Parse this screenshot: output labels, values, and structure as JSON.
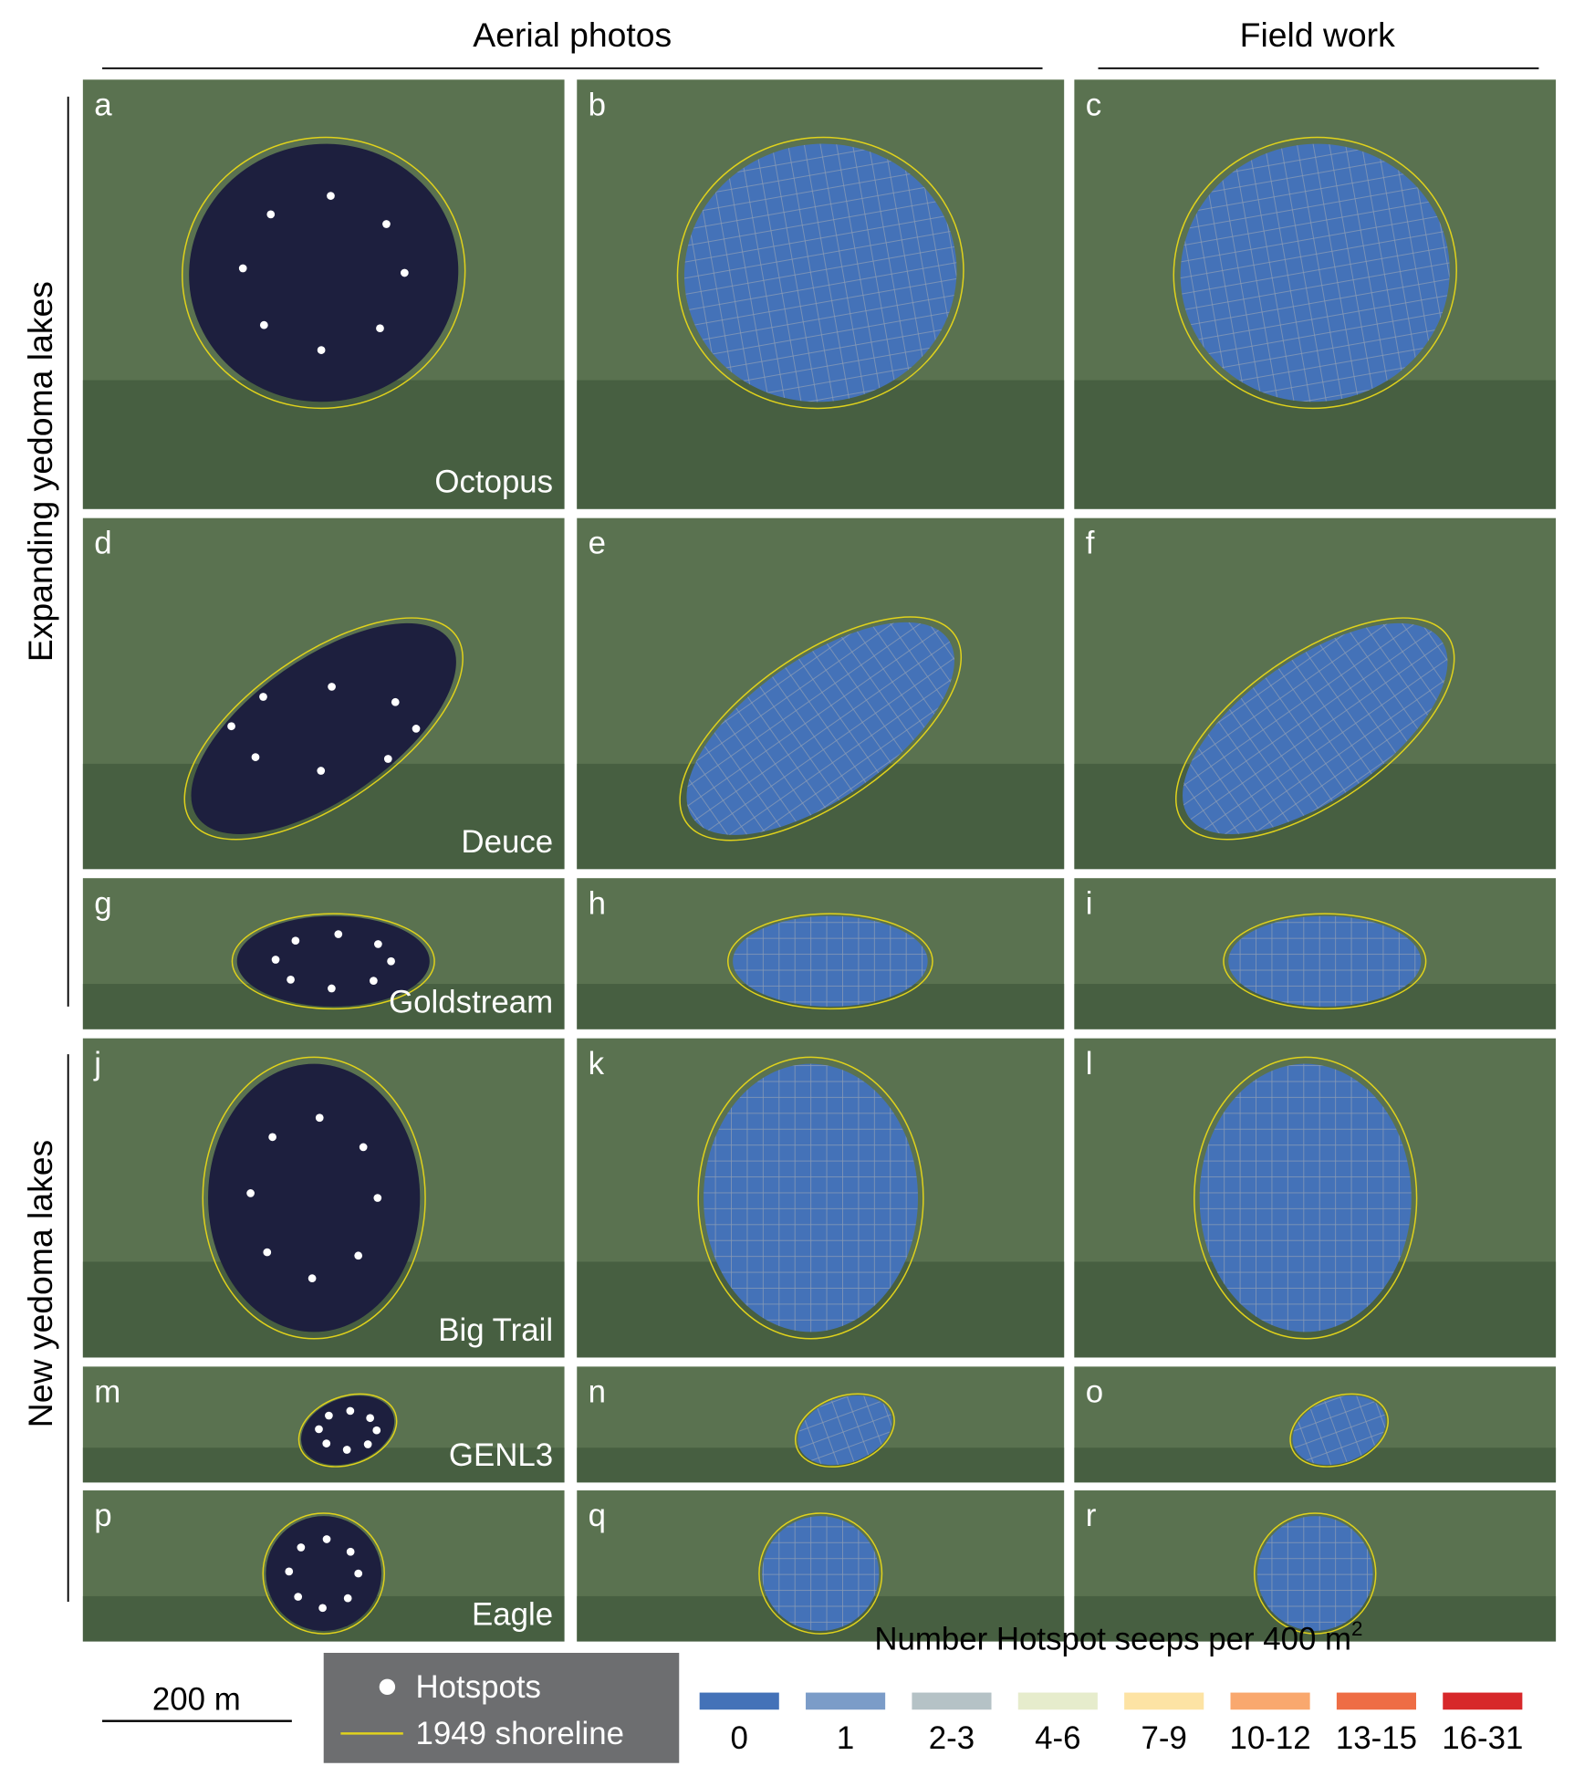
{
  "headers": [
    "Aerial photos",
    "Field work"
  ],
  "row_groups": [
    "Expanding yedoma lakes",
    "New yedoma lakes"
  ],
  "rows": [
    {
      "lake": "Octopus",
      "letters": [
        "a",
        "b",
        "c"
      ]
    },
    {
      "lake": "Deuce",
      "letters": [
        "d",
        "e",
        "f"
      ]
    },
    {
      "lake": "Goldstream",
      "letters": [
        "g",
        "h",
        "i"
      ]
    },
    {
      "lake": "Big Trail",
      "letters": [
        "j",
        "k",
        "l"
      ]
    },
    {
      "lake": "GENL3",
      "letters": [
        "m",
        "n",
        "o"
      ]
    },
    {
      "lake": "Eagle",
      "letters": [
        "p",
        "q",
        "r"
      ]
    }
  ],
  "scale_bar": "200 m",
  "legend": {
    "hotspots": "Hotspots",
    "shoreline": "1949 shoreline",
    "title": "Number Hotspot seeps per 400 m",
    "title_sup": "2",
    "bins": [
      {
        "label": "0",
        "color": "#4472b8"
      },
      {
        "label": "1",
        "color": "#7b9cc8"
      },
      {
        "label": "2-3",
        "color": "#b5c2c6"
      },
      {
        "label": "4-6",
        "color": "#e6eccc"
      },
      {
        "label": "7-9",
        "color": "#fde3a4"
      },
      {
        "label": "10-12",
        "color": "#f9a86e"
      },
      {
        "label": "13-15",
        "color": "#ee6d45"
      },
      {
        "label": "16-31",
        "color": "#d7282a"
      }
    ]
  }
}
